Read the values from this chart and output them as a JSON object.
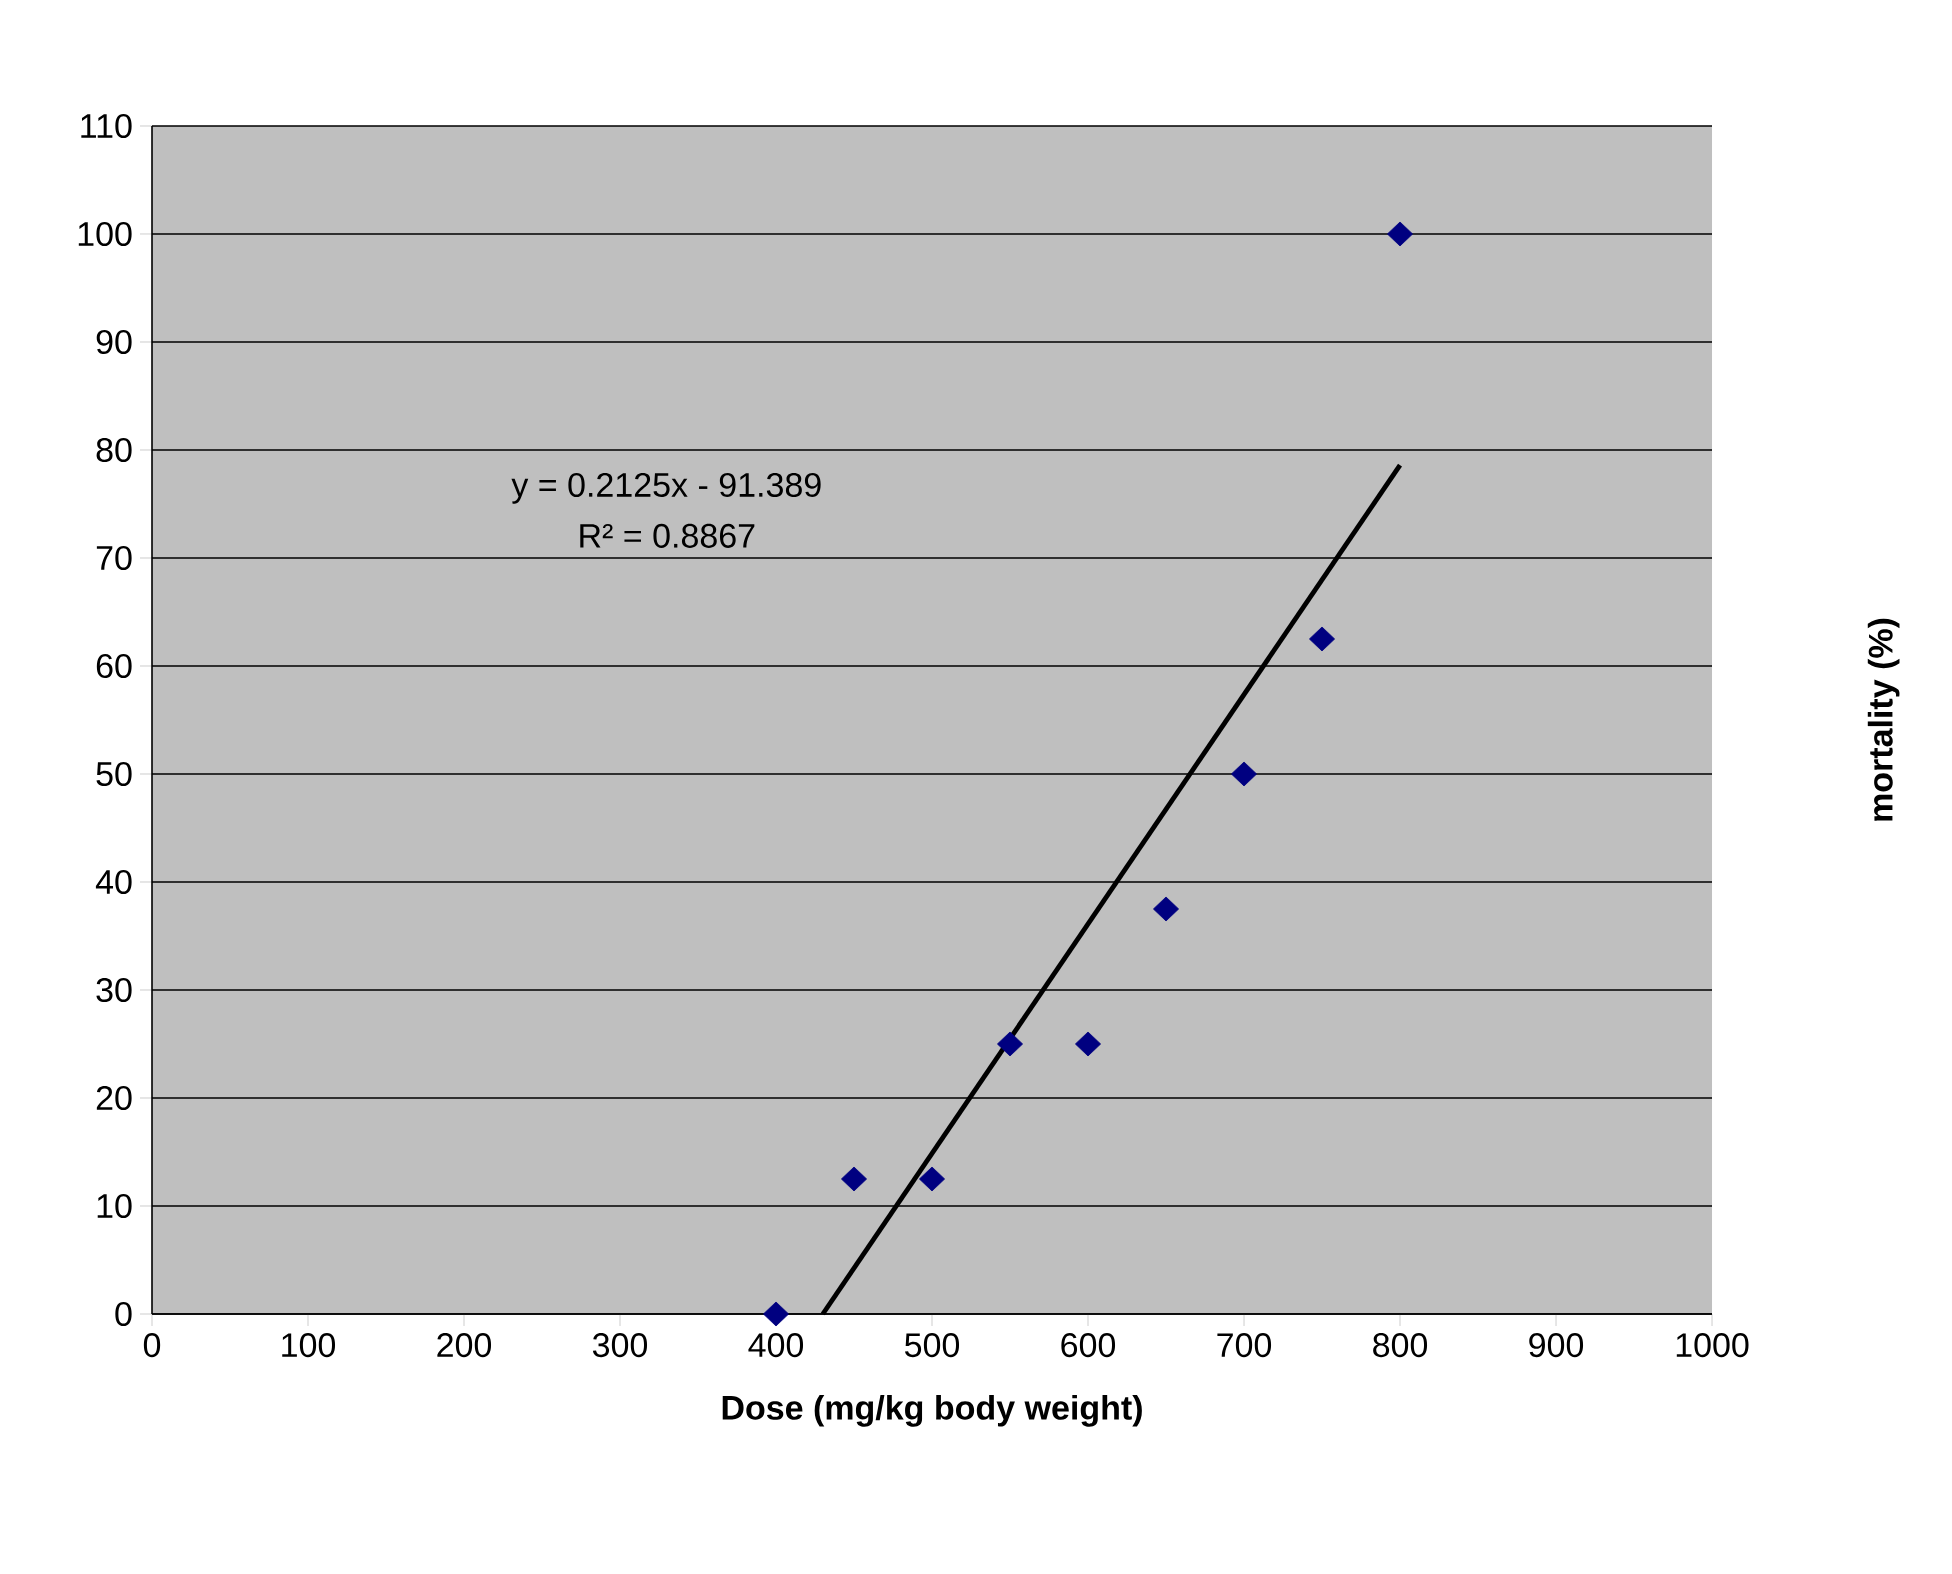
{
  "chart_data": {
    "type": "scatter",
    "xlabel": "Dose (mg/kg body weight)",
    "ylabel": "mortality (%)",
    "annotations": [
      "y = 0.2125x - 91.389",
      "R² = 0.8867"
    ],
    "series": [
      {
        "color": "#000080",
        "marker": "diamond",
        "x": [
          400,
          450,
          500,
          550,
          600,
          650,
          700,
          750,
          800
        ],
        "values": [
          0,
          12.5,
          12.5,
          25,
          25,
          37.5,
          50,
          62.5,
          100
        ]
      },
      {
        "type": "line",
        "color": "#000000",
        "marker": "none",
        "line_style": "solid",
        "x": [
          430,
          800
        ],
        "values": [
          0,
          78.6
        ]
      }
    ],
    "xlim": [
      0,
      1000
    ],
    "ylim": [
      0,
      110
    ],
    "xticks": [
      0,
      100,
      200,
      300,
      400,
      500,
      600,
      700,
      800,
      900,
      1000
    ],
    "yticks": [
      0,
      10,
      20,
      30,
      40,
      50,
      60,
      70,
      80,
      90,
      100,
      110
    ],
    "grid": "y"
  }
}
